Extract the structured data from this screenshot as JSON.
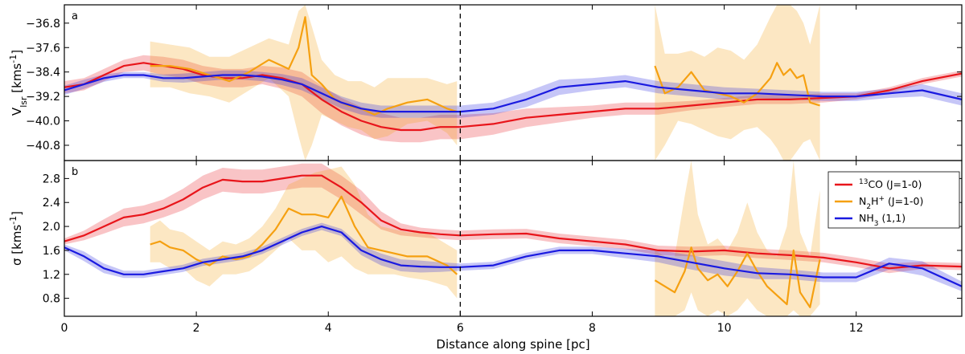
{
  "chart_data": {
    "type": "line",
    "xlabel": "Distance along spine [pc]",
    "xlim": [
      0,
      13.6
    ],
    "xticks": [
      "0",
      "2",
      "4",
      "6",
      "8",
      "10",
      "12"
    ],
    "vline_x": 6,
    "colors": {
      "co": "#e8151b",
      "n2h": "#f5a011",
      "nh3": "#1a1ae0"
    },
    "panels": [
      {
        "label": "a",
        "ylabel_main": "V",
        "ylabel_sub": "lsr",
        "ylabel_unit": " [kms",
        "ylabel_exp": "-1",
        "ylabel_end": "]",
        "ylim": [
          -41.3,
          -36.2
        ],
        "yticks": [
          "-40.8",
          "-40.0",
          "-39.2",
          "-38.4",
          "-37.6",
          "-36.8"
        ],
        "series": [
          {
            "key": "co",
            "x": [
              0,
              0.3,
              0.6,
              0.9,
              1.2,
              1.5,
              1.8,
              2.1,
              2.4,
              2.7,
              3.0,
              3.3,
              3.6,
              3.9,
              4.2,
              4.5,
              4.8,
              5.1,
              5.4,
              5.7,
              6.0,
              6.5,
              7.0,
              7.5,
              8.0,
              8.5,
              9.0,
              9.5,
              10.0,
              10.5,
              11.0,
              11.5,
              12.0,
              12.5,
              13.0,
              13.6
            ],
            "y": [
              -38.9,
              -38.8,
              -38.5,
              -38.2,
              -38.1,
              -38.2,
              -38.3,
              -38.5,
              -38.6,
              -38.6,
              -38.5,
              -38.6,
              -38.8,
              -39.3,
              -39.7,
              -40.0,
              -40.2,
              -40.3,
              -40.3,
              -40.2,
              -40.2,
              -40.1,
              -39.9,
              -39.8,
              -39.7,
              -39.6,
              -39.6,
              -39.5,
              -39.4,
              -39.3,
              -39.3,
              -39.25,
              -39.2,
              -39.0,
              -38.7,
              -38.45
            ],
            "err": [
              0.2,
              0.2,
              0.2,
              0.2,
              0.25,
              0.3,
              0.3,
              0.3,
              0.3,
              0.3,
              0.3,
              0.35,
              0.4,
              0.45,
              0.45,
              0.45,
              0.45,
              0.4,
              0.4,
              0.4,
              0.4,
              0.35,
              0.3,
              0.25,
              0.2,
              0.2,
              0.2,
              0.15,
              0.15,
              0.15,
              0.15,
              0.15,
              0.1,
              0.1,
              0.1,
              0.1
            ]
          },
          {
            "key": "n2h",
            "segments": [
              {
                "x": [
                  1.3,
                  1.6,
                  1.9,
                  2.2,
                  2.5,
                  2.8,
                  3.1,
                  3.4,
                  3.55,
                  3.65,
                  3.75,
                  3.9,
                  4.1,
                  4.3,
                  4.5,
                  4.7,
                  4.9,
                  5.2,
                  5.5,
                  5.8,
                  5.95
                ],
                "y": [
                  -38.2,
                  -38.2,
                  -38.3,
                  -38.5,
                  -38.7,
                  -38.4,
                  -38.0,
                  -38.3,
                  -37.6,
                  -36.6,
                  -38.5,
                  -38.8,
                  -39.3,
                  -39.5,
                  -39.6,
                  -39.8,
                  -39.6,
                  -39.4,
                  -39.3,
                  -39.6,
                  -39.7
                ],
                "lo": [
                  -38.9,
                  -38.9,
                  -39.1,
                  -39.2,
                  -39.4,
                  -39.0,
                  -38.6,
                  -39.2,
                  -40.5,
                  -41.3,
                  -40.8,
                  -39.8,
                  -40.0,
                  -40.2,
                  -40.3,
                  -40.6,
                  -40.5,
                  -40.1,
                  -40.0,
                  -40.4,
                  -40.8
                ],
                "hi": [
                  -37.4,
                  -37.5,
                  -37.6,
                  -37.9,
                  -37.9,
                  -37.6,
                  -37.3,
                  -37.5,
                  -36.4,
                  -36.2,
                  -36.9,
                  -38.0,
                  -38.5,
                  -38.7,
                  -38.7,
                  -38.9,
                  -38.6,
                  -38.6,
                  -38.6,
                  -38.8,
                  -38.7
                ]
              },
              {
                "x": [
                  8.95,
                  9.1,
                  9.3,
                  9.5,
                  9.7,
                  9.9,
                  10.1,
                  10.3,
                  10.5,
                  10.7,
                  10.8,
                  10.9,
                  11.0,
                  11.1,
                  11.2,
                  11.3,
                  11.45
                ],
                "y": [
                  -38.2,
                  -39.1,
                  -38.9,
                  -38.4,
                  -39.0,
                  -39.1,
                  -39.2,
                  -39.4,
                  -39.1,
                  -38.6,
                  -38.1,
                  -38.5,
                  -38.3,
                  -38.6,
                  -38.5,
                  -39.4,
                  -39.5
                ],
                "lo": [
                  -41.3,
                  -40.8,
                  -40.0,
                  -40.1,
                  -40.3,
                  -40.5,
                  -40.6,
                  -40.3,
                  -40.2,
                  -40.6,
                  -40.9,
                  -41.3,
                  -41.3,
                  -41.0,
                  -40.7,
                  -40.6,
                  -41.3
                ],
                "hi": [
                  -36.2,
                  -37.8,
                  -37.8,
                  -37.7,
                  -37.9,
                  -37.6,
                  -37.7,
                  -38.0,
                  -37.5,
                  -36.6,
                  -36.2,
                  -36.2,
                  -36.2,
                  -36.4,
                  -36.8,
                  -37.5,
                  -36.2
                ]
              }
            ]
          },
          {
            "key": "nh3",
            "x": [
              0,
              0.3,
              0.6,
              0.9,
              1.2,
              1.5,
              1.8,
              2.1,
              2.4,
              2.7,
              3.0,
              3.3,
              3.6,
              3.9,
              4.2,
              4.5,
              4.8,
              5.1,
              5.4,
              5.7,
              6.0,
              6.5,
              7.0,
              7.5,
              8.0,
              8.5,
              9.0,
              9.5,
              10.0,
              10.5,
              11.0,
              11.5,
              12.0,
              12.5,
              13.0,
              13.6
            ],
            "y": [
              -39.0,
              -38.8,
              -38.6,
              -38.5,
              -38.5,
              -38.6,
              -38.6,
              -38.55,
              -38.5,
              -38.5,
              -38.55,
              -38.65,
              -38.8,
              -39.1,
              -39.4,
              -39.6,
              -39.7,
              -39.7,
              -39.7,
              -39.7,
              -39.7,
              -39.6,
              -39.3,
              -38.9,
              -38.8,
              -38.7,
              -38.9,
              -39.0,
              -39.1,
              -39.1,
              -39.15,
              -39.2,
              -39.2,
              -39.1,
              -39.0,
              -39.3
            ],
            "err": [
              0.15,
              0.15,
              0.12,
              0.1,
              0.1,
              0.12,
              0.15,
              0.15,
              0.15,
              0.15,
              0.15,
              0.18,
              0.2,
              0.2,
              0.2,
              0.2,
              0.2,
              0.2,
              0.2,
              0.2,
              0.2,
              0.2,
              0.25,
              0.25,
              0.2,
              0.2,
              0.2,
              0.2,
              0.2,
              0.15,
              0.15,
              0.15,
              0.15,
              0.15,
              0.2,
              0.2
            ]
          }
        ]
      },
      {
        "label": "b",
        "ylabel_main": "σ",
        "ylabel_sub": "",
        "ylabel_unit": " [kms",
        "ylabel_exp": "-1",
        "ylabel_end": "]",
        "ylim": [
          0.5,
          3.1
        ],
        "yticks": [
          "0.8",
          "1.2",
          "1.6",
          "2.0",
          "2.4",
          "2.8"
        ],
        "series": [
          {
            "key": "co",
            "x": [
              0,
              0.3,
              0.6,
              0.9,
              1.2,
              1.5,
              1.8,
              2.1,
              2.4,
              2.7,
              3.0,
              3.3,
              3.6,
              3.9,
              4.2,
              4.5,
              4.8,
              5.1,
              5.4,
              5.7,
              6.0,
              6.5,
              7.0,
              7.5,
              8.0,
              8.5,
              9.0,
              9.5,
              10.0,
              10.5,
              11.0,
              11.5,
              12.0,
              12.5,
              13.0,
              13.6
            ],
            "y": [
              1.75,
              1.85,
              2.0,
              2.15,
              2.2,
              2.3,
              2.45,
              2.65,
              2.78,
              2.75,
              2.75,
              2.8,
              2.85,
              2.85,
              2.65,
              2.4,
              2.1,
              1.95,
              1.9,
              1.87,
              1.85,
              1.87,
              1.88,
              1.8,
              1.75,
              1.7,
              1.6,
              1.58,
              1.6,
              1.55,
              1.52,
              1.48,
              1.4,
              1.3,
              1.35,
              1.33
            ],
            "err": [
              0.05,
              0.08,
              0.12,
              0.15,
              0.15,
              0.15,
              0.18,
              0.2,
              0.2,
              0.2,
              0.2,
              0.2,
              0.2,
              0.2,
              0.2,
              0.2,
              0.15,
              0.1,
              0.08,
              0.08,
              0.08,
              0.08,
              0.08,
              0.08,
              0.08,
              0.08,
              0.08,
              0.08,
              0.08,
              0.08,
              0.08,
              0.08,
              0.08,
              0.08,
              0.06,
              0.06
            ]
          },
          {
            "key": "n2h",
            "segments": [
              {
                "x": [
                  1.3,
                  1.45,
                  1.6,
                  1.8,
                  2.0,
                  2.2,
                  2.4,
                  2.6,
                  2.8,
                  3.0,
                  3.2,
                  3.4,
                  3.6,
                  3.8,
                  4.0,
                  4.2,
                  4.4,
                  4.6,
                  4.8,
                  5.0,
                  5.2,
                  5.5,
                  5.8,
                  5.95
                ],
                "y": [
                  1.7,
                  1.75,
                  1.65,
                  1.6,
                  1.45,
                  1.35,
                  1.5,
                  1.45,
                  1.5,
                  1.7,
                  1.95,
                  2.3,
                  2.2,
                  2.2,
                  2.15,
                  2.5,
                  2.0,
                  1.65,
                  1.6,
                  1.55,
                  1.5,
                  1.5,
                  1.35,
                  1.2
                ],
                "lo": [
                  1.4,
                  1.4,
                  1.3,
                  1.3,
                  1.1,
                  1.0,
                  1.2,
                  1.2,
                  1.25,
                  1.4,
                  1.6,
                  1.8,
                  1.6,
                  1.6,
                  1.4,
                  1.5,
                  1.3,
                  1.2,
                  1.2,
                  1.2,
                  1.15,
                  1.1,
                  1.0,
                  0.8
                ],
                "hi": [
                  2.0,
                  2.1,
                  1.95,
                  1.9,
                  1.75,
                  1.6,
                  1.75,
                  1.7,
                  1.8,
                  2.0,
                  2.3,
                  2.7,
                  2.8,
                  2.9,
                  2.95,
                  3.0,
                  2.7,
                  2.2,
                  2.0,
                  1.95,
                  1.9,
                  1.9,
                  1.7,
                  1.6
                ]
              },
              {
                "x": [
                  8.95,
                  9.1,
                  9.25,
                  9.4,
                  9.5,
                  9.6,
                  9.75,
                  9.9,
                  10.05,
                  10.2,
                  10.35,
                  10.5,
                  10.65,
                  10.8,
                  10.95,
                  11.05,
                  11.15,
                  11.3,
                  11.45
                ],
                "y": [
                  1.1,
                  1.0,
                  0.9,
                  1.25,
                  1.65,
                  1.3,
                  1.1,
                  1.2,
                  1.0,
                  1.25,
                  1.55,
                  1.25,
                  1.0,
                  0.85,
                  0.7,
                  1.6,
                  0.9,
                  0.65,
                  1.45
                ],
                "lo": [
                  0.5,
                  0.5,
                  0.5,
                  0.6,
                  0.9,
                  0.6,
                  0.5,
                  0.6,
                  0.5,
                  0.6,
                  0.8,
                  0.6,
                  0.5,
                  0.5,
                  0.5,
                  0.6,
                  0.5,
                  0.5,
                  0.7
                ],
                "hi": [
                  1.6,
                  1.5,
                  1.5,
                  2.5,
                  3.1,
                  2.2,
                  1.7,
                  1.8,
                  1.6,
                  1.9,
                  2.4,
                  1.9,
                  1.6,
                  1.5,
                  2.0,
                  3.1,
                  1.9,
                  1.5,
                  2.6
                ]
              }
            ]
          },
          {
            "key": "nh3",
            "x": [
              0,
              0.3,
              0.6,
              0.9,
              1.2,
              1.5,
              1.8,
              2.1,
              2.4,
              2.7,
              3.0,
              3.3,
              3.6,
              3.9,
              4.2,
              4.5,
              4.8,
              5.1,
              5.4,
              5.7,
              6.0,
              6.5,
              7.0,
              7.5,
              8.0,
              8.5,
              9.0,
              9.5,
              10.0,
              10.5,
              11.0,
              11.5,
              12.0,
              12.5,
              13.0,
              13.6
            ],
            "y": [
              1.65,
              1.5,
              1.3,
              1.2,
              1.2,
              1.25,
              1.3,
              1.4,
              1.45,
              1.5,
              1.6,
              1.75,
              1.9,
              2.0,
              1.9,
              1.6,
              1.45,
              1.35,
              1.33,
              1.32,
              1.32,
              1.35,
              1.5,
              1.6,
              1.6,
              1.55,
              1.5,
              1.4,
              1.3,
              1.22,
              1.2,
              1.15,
              1.15,
              1.38,
              1.3,
              1.0
            ],
            "err": [
              0.05,
              0.08,
              0.08,
              0.06,
              0.06,
              0.06,
              0.06,
              0.06,
              0.06,
              0.06,
              0.06,
              0.06,
              0.06,
              0.06,
              0.06,
              0.08,
              0.1,
              0.1,
              0.1,
              0.08,
              0.06,
              0.06,
              0.06,
              0.06,
              0.06,
              0.08,
              0.1,
              0.12,
              0.12,
              0.1,
              0.08,
              0.08,
              0.08,
              0.1,
              0.12,
              0.08
            ]
          }
        ]
      }
    ],
    "legend": {
      "placement": "top-right of panel b",
      "entries": [
        {
          "key": "co",
          "sup": "13",
          "main": "CO (J=1-0)",
          "sub": ""
        },
        {
          "key": "n2h",
          "sup": "",
          "main": "N",
          "sub": "2",
          "rest": "H",
          "sup2": "+",
          "tail": " (J=1-0)"
        },
        {
          "key": "nh3",
          "sup": "",
          "main": "NH",
          "sub": "3",
          "rest": " (1,1)",
          "sup2": "",
          "tail": ""
        }
      ]
    }
  }
}
